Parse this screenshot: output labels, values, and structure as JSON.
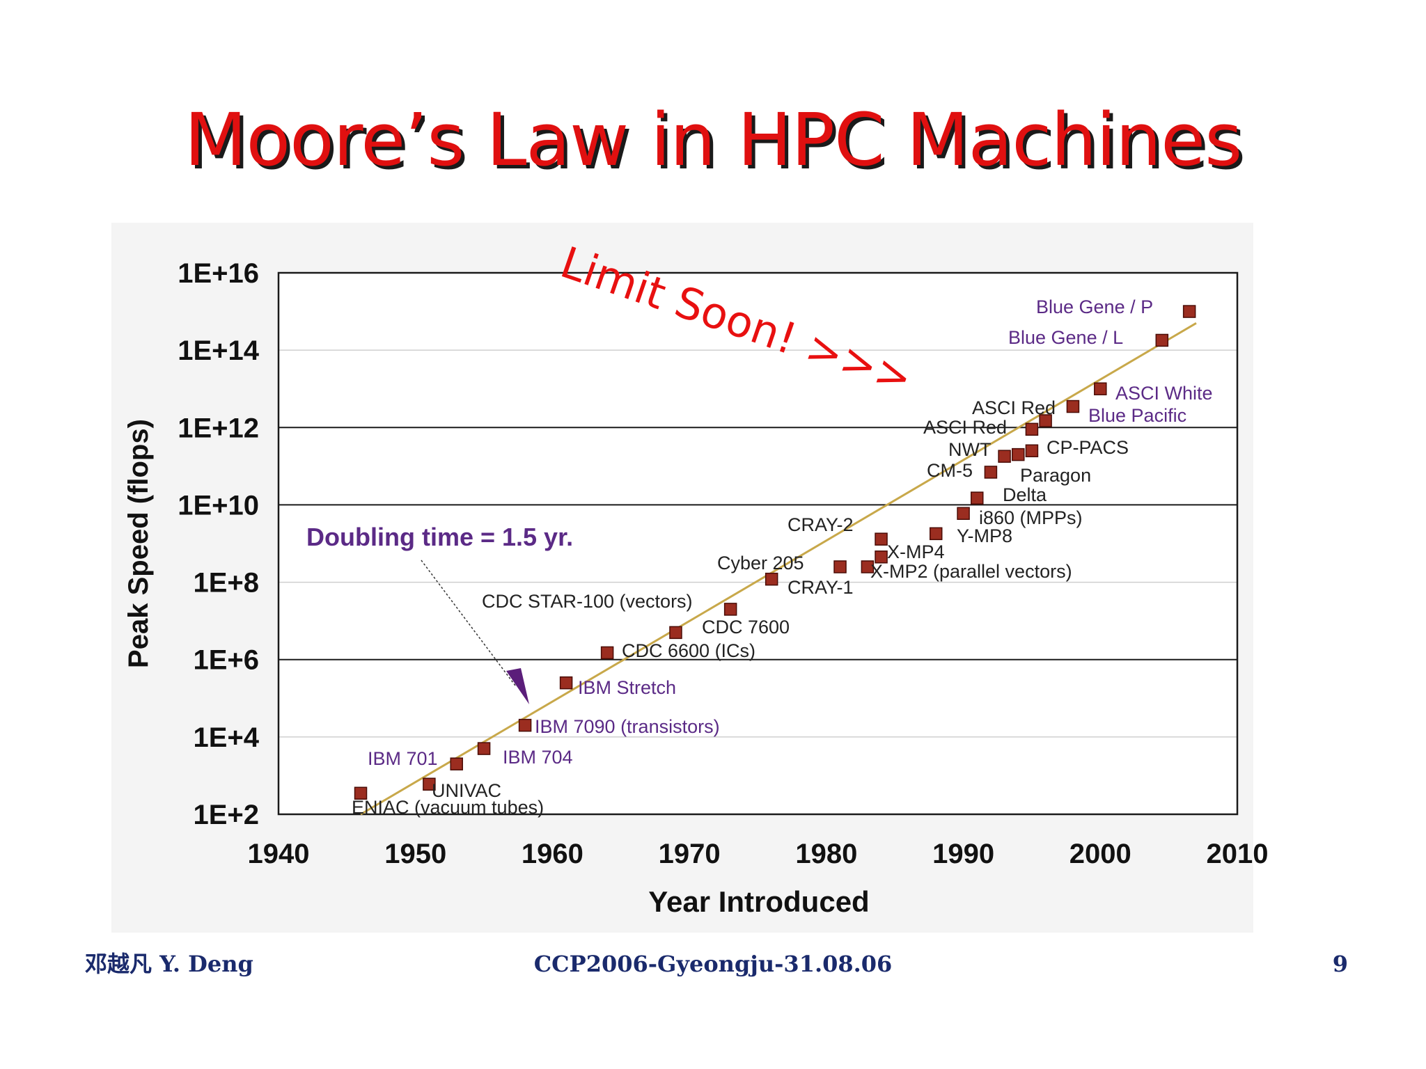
{
  "slide": {
    "title": "Moore’s Law in HPC Machines",
    "note": "Limit Soon! >>>",
    "footer_left": "邓越凡 Y. Deng",
    "footer_center": "CCP2006-Gyeongju-31.08.06",
    "footer_right": "9"
  },
  "colors": {
    "title": "#e01010",
    "marker": "#9b2d20",
    "trend": "#c8a84a",
    "purple_label": "#5b2a86",
    "black_label": "#222222"
  },
  "chart_data": {
    "type": "scatter",
    "xlabel": "Year Introduced",
    "ylabel": "Peak Speed (flops)",
    "xlim": [
      1940,
      2010
    ],
    "xticks": [
      "1940",
      "1950",
      "1960",
      "1970",
      "1980",
      "1990",
      "2000",
      "2010"
    ],
    "ylim_log10": [
      2,
      16
    ],
    "yticks": [
      "1E+2",
      "1E+4",
      "1E+6",
      "1E+8",
      "1E+10",
      "1E+12",
      "1E+14",
      "1E+16"
    ],
    "y_scale": "log",
    "grid": "horizontal at 1E+6, 1E+10, 1E+12 (dark); 1E+4, 1E+8, 1E+14 (light)",
    "trendline": {
      "label": "Doubling time = 1.5 yr.",
      "from": [
        1946,
        100
      ],
      "to": [
        2007,
        500000000000000.0
      ]
    },
    "points": [
      {
        "label": "ENIAC (vacuum tubes)",
        "x": 1946,
        "y": 350.0
      },
      {
        "label": "UNIVAC",
        "x": 1951,
        "y": 600.0
      },
      {
        "label": "IBM 701",
        "x": 1953,
        "y": 2000.0
      },
      {
        "label": "IBM 704",
        "x": 1955,
        "y": 5000.0
      },
      {
        "label": "IBM 7090 (transistors)",
        "x": 1958,
        "y": 20000.0
      },
      {
        "label": "IBM Stretch",
        "x": 1961,
        "y": 250000.0
      },
      {
        "label": "CDC 6600 (ICs)",
        "x": 1964,
        "y": 1500000.0
      },
      {
        "label": "CDC 7600",
        "x": 1969,
        "y": 5000000.0
      },
      {
        "label": "CDC STAR-100 (vectors)",
        "x": 1973,
        "y": 20000000.0
      },
      {
        "label": "CRAY-1",
        "x": 1976,
        "y": 120000000.0
      },
      {
        "label": "Cyber 205",
        "x": 1981,
        "y": 250000000.0
      },
      {
        "label": "X-MP2 (parallel vectors)",
        "x": 1983,
        "y": 250000000.0
      },
      {
        "label": "X-MP4",
        "x": 1984,
        "y": 450000000.0
      },
      {
        "label": "CRAY-2",
        "x": 1984,
        "y": 1300000000.0
      },
      {
        "label": "Y-MP8",
        "x": 1988,
        "y": 1800000000.0
      },
      {
        "label": "i860 (MPPs)",
        "x": 1990,
        "y": 6000000000.0
      },
      {
        "label": "Delta",
        "x": 1991,
        "y": 15000000000.0
      },
      {
        "label": "CM-5",
        "x": 1992,
        "y": 70000000000.0
      },
      {
        "label": "NWT",
        "x": 1993,
        "y": 180000000000.0
      },
      {
        "label": "Paragon",
        "x": 1994,
        "y": 200000000000.0
      },
      {
        "label": "CP-PACS",
        "x": 1995,
        "y": 250000000000.0
      },
      {
        "label": "ASCI Red",
        "x": 1995,
        "y": 900000000000.0
      },
      {
        "label": "ASCI Red",
        "x": 1996,
        "y": 1500000000000.0
      },
      {
        "label": "Blue Pacific",
        "x": 1998,
        "y": 3500000000000.0
      },
      {
        "label": "ASCI White",
        "x": 2000,
        "y": 10000000000000.0
      },
      {
        "label": "Blue Gene / L",
        "x": 2004.5,
        "y": 180000000000000.0
      },
      {
        "label": "Blue Gene / P",
        "x": 2006.5,
        "y": 1000000000000000.0
      }
    ]
  }
}
